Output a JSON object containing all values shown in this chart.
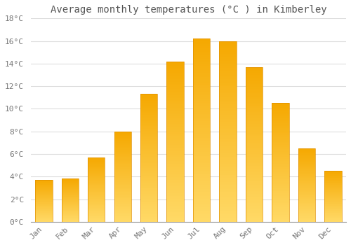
{
  "title": "Average monthly temperatures (°C ) in Kimberley",
  "months": [
    "Jan",
    "Feb",
    "Mar",
    "Apr",
    "May",
    "Jun",
    "Jul",
    "Aug",
    "Sep",
    "Oct",
    "Nov",
    "Dec"
  ],
  "temperatures": [
    3.7,
    3.8,
    5.7,
    8.0,
    11.3,
    14.2,
    16.2,
    16.0,
    13.7,
    10.5,
    6.5,
    4.5
  ],
  "bar_color_top": "#F5A800",
  "bar_color_mid": "#FFBF00",
  "bar_color_bottom": "#FFD966",
  "bar_edge_color": "#E09000",
  "background_color": "#FFFFFF",
  "plot_bg_color": "#FFFFFF",
  "grid_color": "#DDDDDD",
  "text_color": "#777777",
  "title_color": "#555555",
  "ylim": [
    0,
    18
  ],
  "yticks": [
    0,
    2,
    4,
    6,
    8,
    10,
    12,
    14,
    16,
    18
  ],
  "ytick_labels": [
    "0°C",
    "2°C",
    "4°C",
    "6°C",
    "8°C",
    "10°C",
    "12°C",
    "14°C",
    "16°C",
    "18°C"
  ],
  "title_fontsize": 10,
  "tick_fontsize": 8,
  "bar_width": 0.65,
  "figsize": [
    5.0,
    3.5
  ],
  "dpi": 100
}
